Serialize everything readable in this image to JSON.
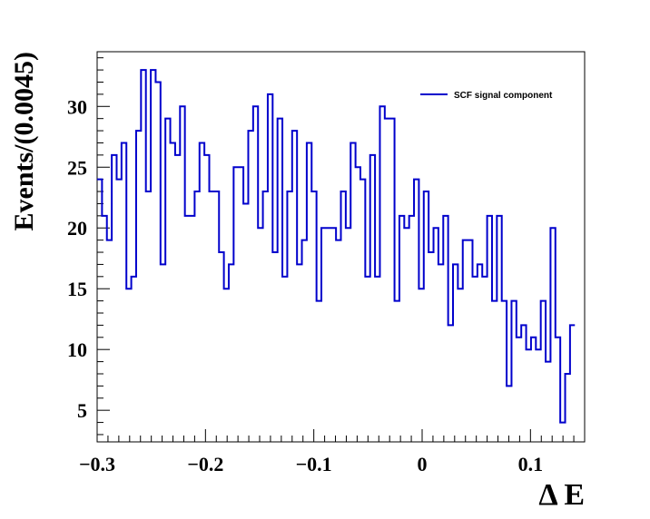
{
  "chart_data": {
    "type": "line",
    "style": "step-histogram",
    "xlabel": "Δ E",
    "ylabel": "Events/(0.0045)",
    "xlim": [
      -0.3,
      0.15
    ],
    "ylim": [
      2.4,
      34.5
    ],
    "bin_width": 0.0045,
    "x_ticks": [
      -0.3,
      -0.2,
      -0.1,
      0,
      0.1
    ],
    "x_tick_labels": [
      "−0.3",
      "−0.2",
      "−0.1",
      "0",
      "0.1"
    ],
    "y_ticks": [
      5,
      10,
      15,
      20,
      25,
      30
    ],
    "y_tick_labels": [
      "5",
      "10",
      "15",
      "20",
      "25",
      "30"
    ],
    "grid": false,
    "legend_position": "top-right",
    "series": [
      {
        "name": "SCF signal component",
        "color": "#0000cc",
        "values": [
          24,
          21,
          19,
          26,
          24,
          27,
          15,
          16,
          28,
          33,
          23,
          33,
          32,
          17,
          29,
          27,
          26,
          30,
          21,
          21,
          23,
          27,
          26,
          23,
          23,
          18,
          15,
          17,
          25,
          25,
          22,
          28,
          30,
          20,
          23,
          31,
          18,
          29,
          16,
          23,
          28,
          17,
          19,
          27,
          23,
          14,
          20,
          20,
          20,
          19,
          23,
          20,
          27,
          25,
          24,
          16,
          26,
          16,
          30,
          29,
          29,
          14,
          21,
          20,
          21,
          24,
          15,
          23,
          18,
          20,
          17,
          21,
          12,
          17,
          15,
          19,
          19,
          16,
          17,
          16,
          21,
          14,
          21,
          14,
          7,
          14,
          11,
          12,
          10,
          11,
          10,
          14,
          9,
          20,
          11,
          4,
          8,
          12
        ]
      }
    ]
  }
}
